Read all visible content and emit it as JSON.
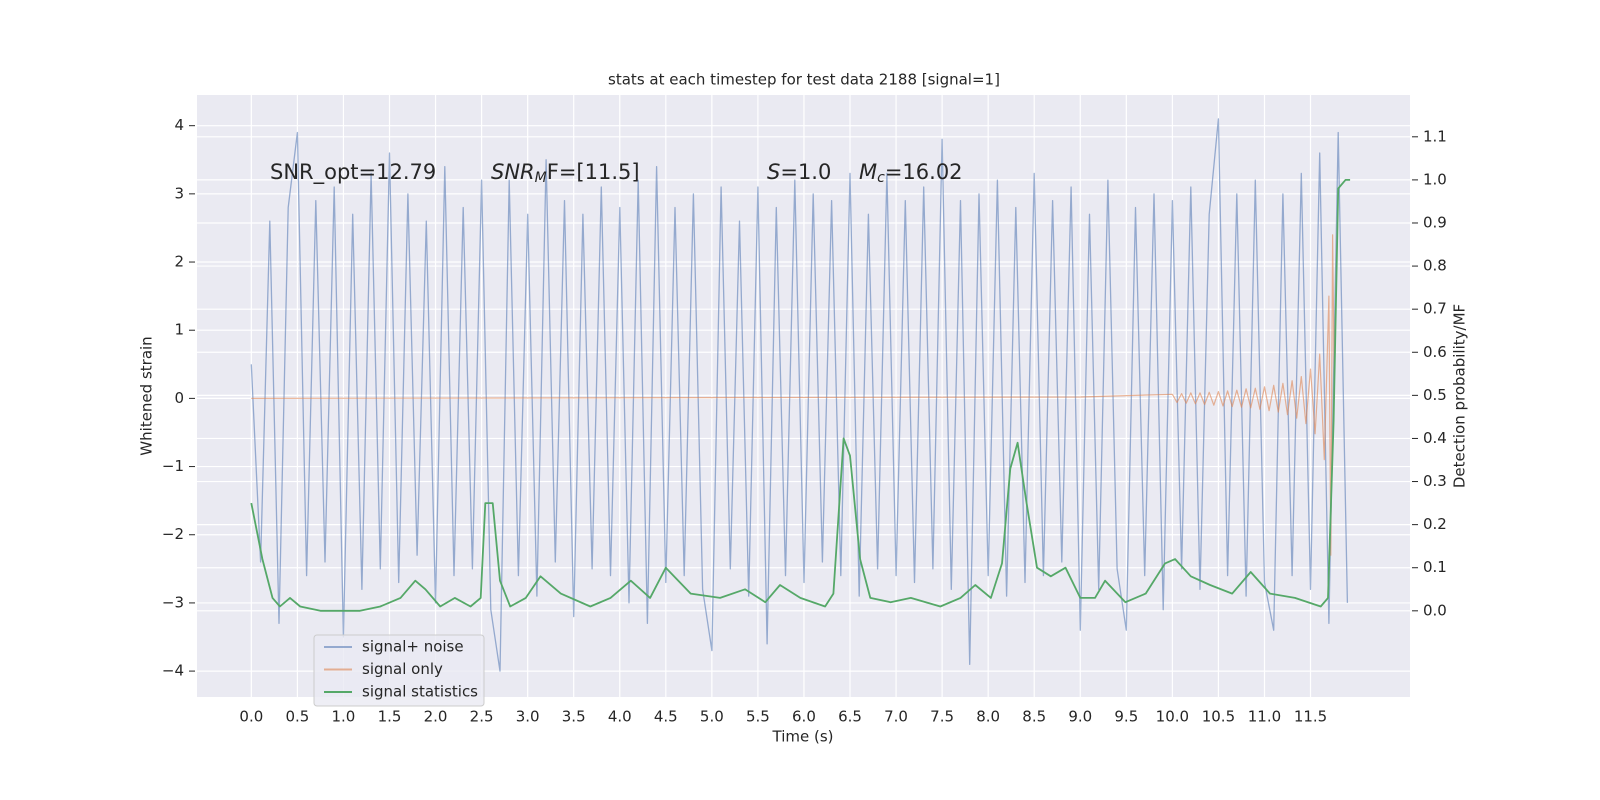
{
  "chart_data": {
    "type": "line",
    "title": "stats at each timestep for test data 2188 [signal=1]",
    "xlabel": "Time (s)",
    "ylabel": "Whitened strain",
    "y2label": "Detection probability/MF",
    "annotations": [
      {
        "text": "SNR_opt=12.79"
      },
      {
        "italic": "SNR",
        "sub": "M",
        "text": "F=[11.5]"
      },
      {
        "italic": "S",
        "text": "=1.0"
      },
      {
        "italic": "M",
        "sub": "c",
        "text": "=16.02"
      }
    ],
    "xlim": [
      -0.59,
      12.58
    ],
    "xticks": [
      {
        "value": 0,
        "label": "0.0"
      },
      0.5,
      {
        "value": 1,
        "label": "1.0"
      },
      1.5,
      {
        "value": 2,
        "label": "2.0"
      },
      2.5,
      {
        "value": 3,
        "label": "3.0"
      },
      3.5,
      {
        "value": 4,
        "label": "4.0"
      },
      4.5,
      {
        "value": 5,
        "label": "5.0"
      },
      5.5,
      {
        "value": 6,
        "label": "6.0"
      },
      6.5,
      {
        "value": 7,
        "label": "7.0"
      },
      7.5,
      {
        "value": 8,
        "label": "8.0"
      },
      8.5,
      {
        "value": 9,
        "label": "9.0"
      },
      9.5,
      {
        "value": 10,
        "label": "10.0"
      },
      10.5,
      {
        "value": 11,
        "label": "11.0"
      },
      11.5
    ],
    "ylim": [
      -4.38,
      4.45
    ],
    "yticks": [
      {
        "value": -4,
        "label": "−4"
      },
      {
        "value": -3,
        "label": "−3"
      },
      {
        "value": -2,
        "label": "−2"
      },
      {
        "value": -1,
        "label": "−1"
      },
      0,
      1,
      2,
      3,
      4
    ],
    "y2lim": [
      -0.2,
      1.197
    ],
    "y2ticks": [
      {
        "value": 0,
        "label": "0.0"
      },
      0.1,
      0.2,
      0.3,
      0.4,
      0.5,
      0.6,
      0.7,
      0.8,
      0.9,
      {
        "value": 1,
        "label": "1.0"
      },
      1.1
    ],
    "grid": true,
    "legend_position": "lower left",
    "series": [
      {
        "name": "signal+ noise",
        "color": "#4c72b0",
        "axis": "y",
        "x": [
          0,
          0.1,
          0.2,
          0.3,
          0.4,
          0.5,
          0.6,
          0.7,
          0.8,
          0.9,
          1,
          1.1,
          1.2,
          1.3,
          1.4,
          1.5,
          1.6,
          1.7,
          1.8,
          1.9,
          2,
          2.1,
          2.2,
          2.3,
          2.4,
          2.5,
          2.6,
          2.7,
          2.8,
          2.9,
          3,
          3.1,
          3.2,
          3.3,
          3.4,
          3.5,
          3.6,
          3.7,
          3.8,
          3.9,
          4,
          4.1,
          4.2,
          4.3,
          4.4,
          4.5,
          4.6,
          4.7,
          4.8,
          4.9,
          5,
          5.1,
          5.2,
          5.3,
          5.4,
          5.5,
          5.6,
          5.7,
          5.8,
          5.9,
          6,
          6.1,
          6.2,
          6.3,
          6.4,
          6.5,
          6.6,
          6.7,
          6.8,
          6.9,
          7,
          7.1,
          7.2,
          7.3,
          7.4,
          7.5,
          7.6,
          7.7,
          7.8,
          7.9,
          8,
          8.1,
          8.2,
          8.3,
          8.4,
          8.5,
          8.6,
          8.7,
          8.8,
          8.9,
          9,
          9.1,
          9.2,
          9.3,
          9.4,
          9.5,
          9.6,
          9.7,
          9.8,
          9.9,
          10,
          10.1,
          10.2,
          10.3,
          10.4,
          10.5,
          10.6,
          10.7,
          10.8,
          10.9,
          11,
          11.1,
          11.2,
          11.3,
          11.4,
          11.5,
          11.6,
          11.7,
          11.8,
          11.9
        ],
        "values": [
          0.5,
          -2.4,
          2.6,
          -3.3,
          2.8,
          3.9,
          -2.6,
          2.9,
          -2.4,
          3.1,
          -3.5,
          2.7,
          -2.8,
          3.3,
          -2.5,
          3.6,
          -2.7,
          3.0,
          -2.3,
          2.6,
          -3.0,
          3.4,
          -2.6,
          2.8,
          -2.5,
          3.2,
          -3.1,
          -4.0,
          3.2,
          -2.6,
          2.7,
          -2.9,
          3.5,
          -2.4,
          2.9,
          -3.2,
          2.7,
          -2.5,
          3.1,
          -2.6,
          2.8,
          -3.0,
          3.2,
          -3.3,
          3.4,
          -2.7,
          2.8,
          -2.6,
          3.0,
          -2.8,
          -3.7,
          3.1,
          -2.5,
          2.6,
          -2.9,
          3.1,
          -3.6,
          2.8,
          -2.6,
          3.2,
          -2.7,
          3.0,
          -2.4,
          2.9,
          -2.6,
          3.3,
          -2.9,
          2.7,
          -2.5,
          3.3,
          -2.6,
          2.9,
          -2.7,
          3.1,
          -2.5,
          3.8,
          -2.8,
          2.9,
          -3.9,
          3.0,
          -2.6,
          3.2,
          -2.9,
          2.8,
          -2.7,
          3.3,
          -2.6,
          2.9,
          -2.4,
          3.1,
          -3.4,
          2.7,
          -2.8,
          3.2,
          -2.5,
          -3.4,
          2.8,
          -2.6,
          3.0,
          -3.1,
          2.9,
          -2.5,
          3.1,
          -2.8,
          2.7,
          4.1,
          -2.6,
          3.0,
          -2.9,
          3.2,
          -2.7,
          -3.4,
          3.0,
          -2.6,
          3.3,
          -2.8,
          3.6,
          -3.3,
          3.9,
          -3.0
        ]
      },
      {
        "name": "signal only",
        "color": "#dd8452",
        "axis": "y",
        "x": [
          0,
          9,
          10,
          10.05,
          10.1,
          10.15,
          10.2,
          10.25,
          10.3,
          10.35,
          10.4,
          10.45,
          10.5,
          10.55,
          10.6,
          10.65,
          10.7,
          10.75,
          10.8,
          10.85,
          10.9,
          10.95,
          11,
          11.05,
          11.1,
          11.15,
          11.2,
          11.25,
          11.3,
          11.35,
          11.4,
          11.45,
          11.5,
          11.55,
          11.6,
          11.65,
          11.7,
          11.72,
          11.74,
          11.76
        ],
        "values": [
          0,
          0.02,
          0.06,
          -0.06,
          0.07,
          -0.07,
          0.08,
          -0.08,
          0.08,
          -0.09,
          0.09,
          -0.1,
          0.1,
          -0.11,
          0.11,
          -0.12,
          0.12,
          -0.13,
          0.14,
          -0.14,
          0.15,
          -0.16,
          0.17,
          -0.18,
          0.19,
          -0.2,
          0.22,
          -0.24,
          0.26,
          -0.29,
          0.32,
          -0.37,
          0.43,
          -0.52,
          0.65,
          -0.9,
          1.5,
          -2.3,
          2.4,
          0
        ]
      },
      {
        "name": "signal statistics",
        "color": "#55a868",
        "axis": "y2",
        "x": [
          0,
          0.12,
          0.23,
          0.31,
          0.42,
          0.53,
          0.75,
          0.97,
          1.18,
          1.4,
          1.62,
          1.78,
          1.89,
          2.05,
          2.21,
          2.38,
          2.49,
          2.54,
          2.62,
          2.7,
          2.81,
          2.98,
          3.14,
          3.36,
          3.68,
          3.9,
          4.12,
          4.33,
          4.5,
          4.77,
          5.09,
          5.36,
          5.58,
          5.74,
          5.96,
          6.23,
          6.32,
          6.43,
          6.5,
          6.61,
          6.72,
          6.94,
          7.16,
          7.48,
          7.7,
          7.86,
          8.03,
          8.15,
          8.24,
          8.32,
          8.41,
          8.53,
          8.68,
          8.84,
          9,
          9.16,
          9.27,
          9.49,
          9.71,
          9.92,
          10.03,
          10.2,
          10.41,
          10.65,
          10.85,
          11.06,
          11.33,
          11.61,
          11.69,
          11.75,
          11.8,
          11.88,
          11.93
        ],
        "values": [
          0.25,
          0.12,
          0.03,
          0.01,
          0.03,
          0.01,
          0,
          0,
          0,
          0.01,
          0.03,
          0.07,
          0.05,
          0.01,
          0.03,
          0.01,
          0.03,
          0.25,
          0.25,
          0.07,
          0.01,
          0.03,
          0.08,
          0.04,
          0.01,
          0.03,
          0.07,
          0.03,
          0.1,
          0.04,
          0.03,
          0.05,
          0.02,
          0.06,
          0.03,
          0.01,
          0.04,
          0.4,
          0.36,
          0.12,
          0.03,
          0.02,
          0.03,
          0.01,
          0.03,
          0.06,
          0.03,
          0.11,
          0.33,
          0.39,
          0.26,
          0.1,
          0.08,
          0.1,
          0.03,
          0.03,
          0.07,
          0.02,
          0.04,
          0.11,
          0.12,
          0.08,
          0.06,
          0.04,
          0.09,
          0.04,
          0.03,
          0.01,
          0.03,
          0.44,
          0.98,
          1,
          1
        ]
      }
    ]
  }
}
